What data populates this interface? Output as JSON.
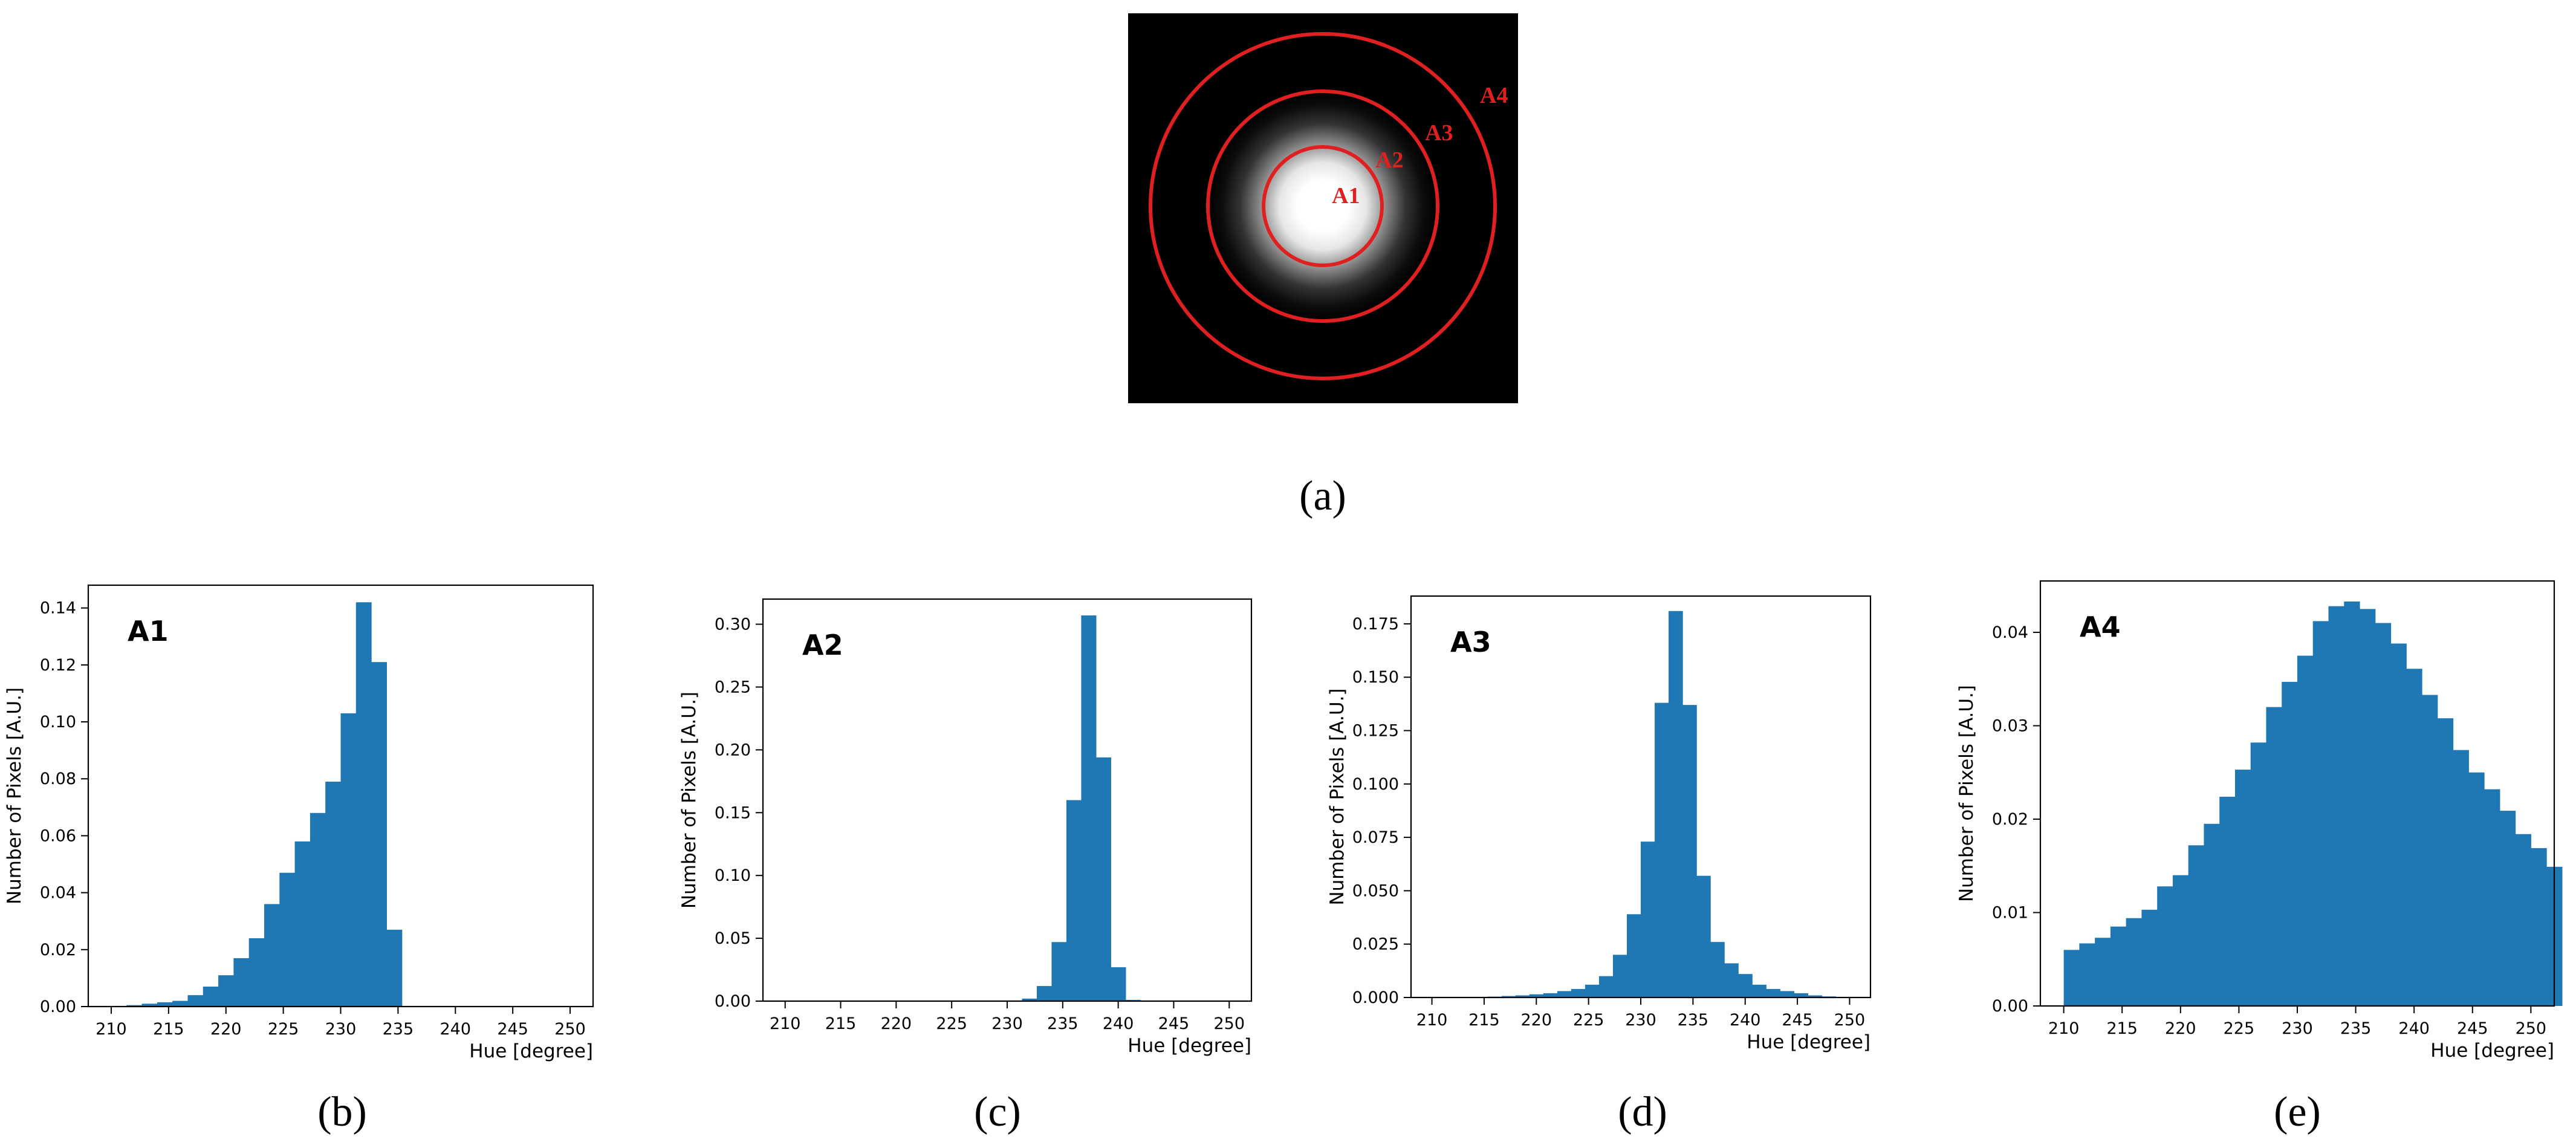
{
  "image_a": {
    "caption": "(a)",
    "ring_color": "#e02020",
    "rings": [
      {
        "name": "A1"
      },
      {
        "name": "A2"
      },
      {
        "name": "A3"
      },
      {
        "name": "A4"
      }
    ]
  },
  "bar_color": "#1f77b4",
  "chart_data": [
    {
      "type": "bar",
      "caption": "(b)",
      "label": "A1",
      "xlabel": "Hue [degree]",
      "ylabel": "Number of Pixels [A.U.]",
      "xlim": [
        208,
        252
      ],
      "ylim": [
        0,
        0.148
      ],
      "xticks": [
        210,
        215,
        220,
        225,
        230,
        235,
        240,
        245,
        250
      ],
      "yticks": [
        0.0,
        0.02,
        0.04,
        0.06,
        0.08,
        0.1,
        0.12,
        0.14
      ],
      "ytick_labels": [
        "0.00",
        "0.02",
        "0.04",
        "0.06",
        "0.08",
        "0.10",
        "0.12",
        "0.14"
      ],
      "bin_start": 210,
      "bin_width": 1.3333,
      "values": [
        0.0,
        0.0005,
        0.001,
        0.0015,
        0.002,
        0.004,
        0.007,
        0.011,
        0.017,
        0.024,
        0.036,
        0.047,
        0.058,
        0.068,
        0.079,
        0.103,
        0.142,
        0.121,
        0.027,
        0,
        0,
        0,
        0,
        0,
        0,
        0,
        0,
        0,
        0,
        0
      ]
    },
    {
      "type": "bar",
      "caption": "(c)",
      "label": "A2",
      "xlabel": "Hue [degree]",
      "ylabel": "Number of Pixels [A.U.]",
      "xlim": [
        208,
        252
      ],
      "ylim": [
        0,
        0.32
      ],
      "xticks": [
        210,
        215,
        220,
        225,
        230,
        235,
        240,
        245,
        250
      ],
      "yticks": [
        0.0,
        0.05,
        0.1,
        0.15,
        0.2,
        0.25,
        0.3
      ],
      "ytick_labels": [
        "0.00",
        "0.05",
        "0.10",
        "0.15",
        "0.20",
        "0.25",
        "0.30"
      ],
      "bin_start": 210,
      "bin_width": 1.3333,
      "values": [
        0,
        0,
        0,
        0,
        0,
        0,
        0,
        0,
        0,
        0,
        0,
        0,
        0,
        0,
        0,
        0.0005,
        0.002,
        0.012,
        0.047,
        0.16,
        0.307,
        0.194,
        0.027,
        0.001,
        0,
        0,
        0,
        0,
        0,
        0
      ]
    },
    {
      "type": "bar",
      "caption": "(d)",
      "label": "A3",
      "xlabel": "Hue [degree]",
      "ylabel": "Number of Pixels [A.U.]",
      "xlim": [
        208,
        252
      ],
      "ylim": [
        0,
        0.188
      ],
      "xticks": [
        210,
        215,
        220,
        225,
        230,
        235,
        240,
        245,
        250
      ],
      "yticks": [
        0.0,
        0.025,
        0.05,
        0.075,
        0.1,
        0.125,
        0.15,
        0.175
      ],
      "ytick_labels": [
        "0.000",
        "0.025",
        "0.050",
        "0.075",
        "0.100",
        "0.125",
        "0.150",
        "0.175"
      ],
      "bin_start": 210,
      "bin_width": 1.3333,
      "values": [
        0,
        0,
        0,
        0.0002,
        0.0004,
        0.0007,
        0.001,
        0.0015,
        0.002,
        0.003,
        0.004,
        0.006,
        0.01,
        0.02,
        0.039,
        0.073,
        0.138,
        0.181,
        0.137,
        0.057,
        0.026,
        0.016,
        0.011,
        0.006,
        0.004,
        0.003,
        0.002,
        0.001,
        0.0005,
        0
      ]
    },
    {
      "type": "bar",
      "caption": "(e)",
      "label": "A4",
      "xlabel": "Hue [degree]",
      "ylabel": "Number of Pixels [A.U.]",
      "xlim": [
        208,
        252
      ],
      "ylim": [
        0,
        0.0455
      ],
      "xticks": [
        210,
        215,
        220,
        225,
        230,
        235,
        240,
        245,
        250
      ],
      "yticks": [
        0.0,
        0.01,
        0.02,
        0.03,
        0.04
      ],
      "ytick_labels": [
        "0.00",
        "0.01",
        "0.02",
        "0.03",
        "0.04"
      ],
      "bin_start": 210,
      "bin_width": 1.3333,
      "values": [
        0.006,
        0.0067,
        0.0073,
        0.0085,
        0.0094,
        0.0103,
        0.0128,
        0.014,
        0.0172,
        0.0195,
        0.0224,
        0.0253,
        0.0282,
        0.032,
        0.0347,
        0.0375,
        0.0412,
        0.0428,
        0.0433,
        0.0425,
        0.041,
        0.0388,
        0.0361,
        0.0333,
        0.0308,
        0.0274,
        0.025,
        0.0232,
        0.0209,
        0.0184,
        0.0169,
        0.0149
      ]
    }
  ]
}
